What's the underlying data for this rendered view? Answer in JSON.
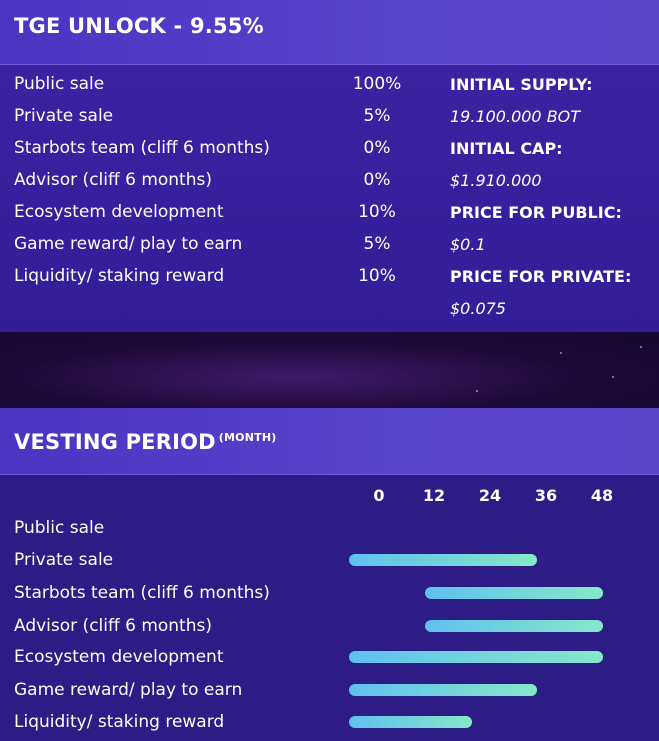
{
  "tge": {
    "title": "TGE UNLOCK - 9.55%",
    "rows": [
      {
        "label": "Public sale",
        "pct": "100%"
      },
      {
        "label": "Private sale",
        "pct": "5%"
      },
      {
        "label": "Starbots team (cliff 6 months)",
        "pct": "0%"
      },
      {
        "label": "Advisor (cliff 6 months)",
        "pct": "0%"
      },
      {
        "label": "Ecosystem development",
        "pct": "10%"
      },
      {
        "label": "Game reward/ play to earn",
        "pct": "5%"
      },
      {
        "label": "Liquidity/ staking reward",
        "pct": "10%"
      }
    ],
    "info": [
      {
        "heading": "INITIAL SUPPLY:",
        "value": "19.100.000 BOT"
      },
      {
        "heading": "INITIAL CAP:",
        "value": "$1.910.000"
      },
      {
        "heading": "PRICE FOR PUBLIC:",
        "value": "$0.1"
      },
      {
        "heading": "PRICE FOR PRIVATE:",
        "value": "$0.075"
      }
    ]
  },
  "chart_data": {
    "type": "bar",
    "orientation": "horizontal-range",
    "title": "VESTING PERIOD",
    "title_unit": "(MONTH)",
    "xlabel": "",
    "ylabel": "",
    "xticks": [
      "0",
      "12",
      "24",
      "36",
      "48"
    ],
    "xlim": [
      0,
      48
    ],
    "grid": false,
    "categories": [
      "Public sale",
      "Private sale",
      "Starbots team (cliff 6 months)",
      "Advisor (cliff 6 months)",
      "Ecosystem development",
      "Game reward/ play to earn",
      "Liquidity/ staking reward"
    ],
    "series": [
      {
        "start": [
          null,
          0,
          10,
          10,
          0,
          0,
          0
        ],
        "end": [
          null,
          34,
          54,
          54,
          54,
          34,
          20
        ]
      }
    ],
    "colors": {
      "bar_start": "#5fc0f0",
      "bar_end": "#86e8c8"
    }
  }
}
